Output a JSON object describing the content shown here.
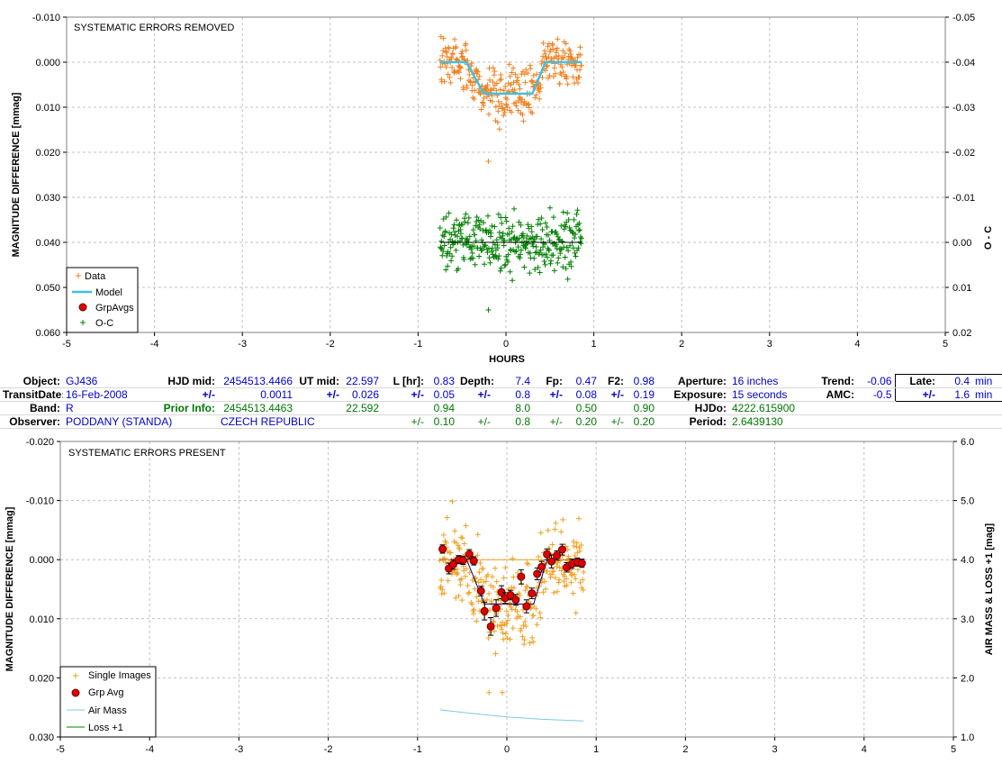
{
  "top_chart": {
    "title": "SYSTEMATIC ERRORS REMOVED",
    "ylabel": "MAGNITUDE DIFFERENCE  [mmag]",
    "y2label": "O - C",
    "xlabel": "HOURS",
    "xticks": [
      "-5",
      "-4",
      "-3",
      "-2",
      "-1",
      "0",
      "1",
      "2",
      "3",
      "4",
      "5"
    ],
    "yticks": [
      "-0.010",
      "0.000",
      "0.010",
      "0.020",
      "0.030",
      "0.040",
      "0.050",
      "0.060"
    ],
    "y2ticks": [
      "-0.05",
      "-0.04",
      "-0.03",
      "-0.02",
      "-0.01",
      "0.00",
      "0.01",
      "0.02"
    ],
    "legend": [
      "Data",
      "Model",
      "GrpAvgs",
      "O-C"
    ]
  },
  "bottom_chart": {
    "title": "SYSTEMATIC ERRORS PRESENT",
    "ylabel": "MAGNITUDE DIFFERENCE  [mmag]",
    "y2label": "AIR MASS & LOSS +1 [mag]",
    "xticks": [
      "-5",
      "-4",
      "-3",
      "-2",
      "-1",
      "0",
      "1",
      "2",
      "3",
      "4",
      "5"
    ],
    "yticks": [
      "-0.020",
      "-0.010",
      "0.000",
      "0.010",
      "0.020",
      "0.030"
    ],
    "y2ticks": [
      "6.0",
      "5.0",
      "4.0",
      "3.0",
      "2.0",
      "1.0"
    ],
    "legend": [
      "Single Images",
      "Grp Avg",
      "Air Mass",
      "Loss +1"
    ]
  },
  "info": {
    "row1": {
      "object_label": "Object:",
      "object": "GJ436",
      "hjd_label": "HJD mid:",
      "hjd": "2454513.4466",
      "ut_label": "UT mid:",
      "ut": "22.597",
      "l_label": "L [hr]:",
      "l": "0.83",
      "depth_label": "Depth:",
      "depth": "7.4",
      "fp_label": "Fp:",
      "fp": "0.47",
      "f2_label": "F2:",
      "f2": "0.98",
      "aperture_label": "Aperture:",
      "aperture": "16 inches",
      "trend_label": "Trend:",
      "trend": "-0.06",
      "late_label": "Late:",
      "late": "0.4",
      "late_unit": "min"
    },
    "row2": {
      "date_label": "TransitDate:",
      "date": "16-Feb-2008",
      "pm1": "+/-",
      "hjd_err": "0.0011",
      "pm2": "+/-",
      "ut_err": "0.026",
      "pm3": "+/-",
      "l_err": "0.05",
      "pm4": "+/-",
      "depth_err": "0.8",
      "pm5": "+/-",
      "fp_err": "0.08",
      "pm6": "+/-",
      "f2_err": "0.19",
      "exposure_label": "Exposure:",
      "exposure": "15 seconds",
      "amc_label": "AMC:",
      "amc": "-0.5",
      "pm7": "+/-",
      "late_err": "1.6",
      "late_err_unit": "min"
    },
    "row3": {
      "band_label": "Band:",
      "band": "R",
      "prior_label": "Prior Info:",
      "prior_hjd": "2454513.4463",
      "prior_ut": "22.592",
      "prior_l": "0.94",
      "prior_depth": "8.0",
      "prior_fp": "0.50",
      "prior_f2": "0.90",
      "hjdo_label": "HJDo:",
      "hjdo": "4222.615900"
    },
    "row4": {
      "observer_label": "Observer:",
      "observer": "PODDANY (STANDA)",
      "country": "CZECH REPUBLIC",
      "pm1": "+/-",
      "l_err": "0.10",
      "pm2": "+/-",
      "depth_err": "0.8",
      "pm3": "+/-",
      "fp_err": "0.20",
      "pm4": "+/-",
      "f2_err": "0.20",
      "period_label": "Period:",
      "period": "2.6439130"
    }
  },
  "colors": {
    "data": "#f08020",
    "model": "#40c0e0",
    "grpavg": "#e00000",
    "oc": "#008000",
    "single": "#f0a020",
    "airmass": "#80c8e8",
    "loss": "#008000"
  },
  "chart_data": [
    {
      "type": "scatter",
      "title": "SYSTEMATIC ERRORS REMOVED",
      "xlabel": "HOURS",
      "ylabel": "MAGNITUDE DIFFERENCE  [mmag]",
      "y2label": "O - C",
      "xlim": [
        -5,
        5
      ],
      "ylim": [
        0.06,
        -0.01
      ],
      "y2lim": [
        0.02,
        -0.05
      ],
      "grid": true,
      "legend_position": "bottom-left",
      "series": [
        {
          "name": "Data",
          "kind": "scatter",
          "x_range": [
            -0.75,
            0.86
          ],
          "y_center_out": 0.0,
          "y_center_in": 0.007,
          "y_scatter": 0.004
        },
        {
          "name": "Model",
          "kind": "line",
          "x": [
            -0.75,
            -0.45,
            -0.25,
            -0.15,
            0.15,
            0.3,
            0.45,
            0.86
          ],
          "y": [
            0.0,
            0.0,
            0.007,
            0.007,
            0.007,
            0.007,
            0.0,
            0.0
          ]
        },
        {
          "name": "O-C",
          "kind": "scatter",
          "x_range": [
            -0.75,
            0.86
          ],
          "y_center": 0.0,
          "y_scatter": 0.004
        }
      ]
    },
    {
      "type": "scatter",
      "title": "SYSTEMATIC ERRORS PRESENT",
      "ylabel": "MAGNITUDE DIFFERENCE  [mmag]",
      "y2label": "AIR MASS & LOSS +1 [mag]",
      "xlim": [
        -5,
        5
      ],
      "ylim": [
        0.03,
        -0.02
      ],
      "y2lim": [
        1.0,
        6.0
      ],
      "grid": true,
      "legend_position": "bottom-left",
      "series": [
        {
          "name": "Single Images",
          "kind": "scatter",
          "x_range": [
            -0.75,
            0.86
          ],
          "y_center_out": 0.0,
          "y_center_in": 0.0075,
          "y_scatter": 0.005
        },
        {
          "name": "Grp Avg",
          "kind": "points_with_errorbars",
          "x": [
            -0.72,
            -0.65,
            -0.6,
            -0.54,
            -0.49,
            -0.42,
            -0.37,
            -0.29,
            -0.25,
            -0.18,
            -0.12,
            -0.06,
            -0.02,
            0.04,
            0.1,
            0.16,
            0.22,
            0.28,
            0.34,
            0.39,
            0.45,
            0.5,
            0.56,
            0.62,
            0.67,
            0.73,
            0.79,
            0.84
          ],
          "y": [
            -0.0018,
            0.0015,
            0.0008,
            0.0,
            0.0001,
            -0.0009,
            0.0002,
            0.0053,
            0.0087,
            0.0113,
            0.0082,
            0.0055,
            0.0065,
            0.006,
            0.0068,
            0.0029,
            0.0079,
            0.0057,
            0.0024,
            0.0012,
            -0.0009,
            0.0003,
            -0.0007,
            -0.0017,
            0.0013,
            0.0007,
            0.0004,
            0.0006
          ],
          "err": [
            0.0007,
            0.0009,
            0.0008,
            0.0007,
            0.0007,
            0.0008,
            0.0007,
            0.0008,
            0.0015,
            0.0015,
            0.0014,
            0.0011,
            0.0009,
            0.0008,
            0.0009,
            0.0012,
            0.0011,
            0.0009,
            0.001,
            0.0009,
            0.0009,
            0.0011,
            0.0008,
            0.0009,
            0.0008,
            0.0008,
            0.0007,
            0.0007
          ]
        },
        {
          "name": "Air Mass",
          "kind": "line",
          "x": [
            -0.75,
            -0.4,
            0.0,
            0.4,
            0.86
          ],
          "y": [
            1.46,
            1.4,
            1.34,
            1.3,
            1.27
          ]
        },
        {
          "name": "Loss +1",
          "kind": "line",
          "x": [],
          "y": []
        }
      ]
    }
  ]
}
